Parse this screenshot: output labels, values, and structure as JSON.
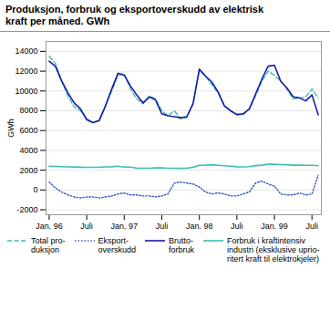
{
  "chart_data": {
    "type": "line",
    "title": "Produksjon, forbruk og eksportoverskudd av elektrisk\nkraft per måned. GWh",
    "ylabel": "GWh",
    "categories": [
      "Jan. 96",
      null,
      null,
      null,
      null,
      null,
      "Juli",
      null,
      null,
      null,
      null,
      null,
      "Jan. 97",
      null,
      null,
      null,
      null,
      null,
      "Juli",
      null,
      null,
      null,
      null,
      null,
      "Jan. 98",
      null,
      null,
      null,
      null,
      null,
      "Juli",
      null,
      null,
      null,
      null,
      null,
      "Jan. 99",
      null,
      null,
      null,
      null,
      null,
      "Juli",
      null
    ],
    "series": [
      {
        "name": "Total pro-\nduksjon",
        "color": "#3dbfb0",
        "line_style": "dashed",
        "values": [
          13500,
          12800,
          11000,
          9500,
          8400,
          8000,
          7200,
          6800,
          7100,
          8500,
          10000,
          11600,
          11700,
          10200,
          9200,
          8700,
          9500,
          9200,
          8000,
          7500,
          8000,
          7200,
          7300,
          8800,
          12100,
          11500,
          10600,
          9800,
          8500,
          8000,
          7700,
          7600,
          8200,
          9500,
          11000,
          12000,
          11600,
          11000,
          10200,
          9200,
          9300,
          9400,
          10200,
          9300
        ]
      },
      {
        "name": "Eksport-\noverskudd",
        "color": "#3355cc",
        "line_style": "dotted",
        "values": [
          800,
          200,
          -200,
          -500,
          -700,
          -800,
          -700,
          -700,
          -800,
          -700,
          -600,
          -400,
          -300,
          -500,
          -500,
          -600,
          -600,
          -700,
          -600,
          -400,
          700,
          800,
          700,
          600,
          300,
          -200,
          -400,
          -300,
          -400,
          -600,
          -600,
          -400,
          -200,
          700,
          900,
          600,
          400,
          -400,
          -500,
          -500,
          -300,
          -500,
          -400,
          1500
        ]
      },
      {
        "name": "Brutto-\nforbruk",
        "color": "#1a1aaa",
        "line_style": "solid",
        "values": [
          13000,
          12500,
          11000,
          9800,
          8800,
          8200,
          7100,
          6800,
          7000,
          8500,
          10200,
          11800,
          11600,
          10500,
          9600,
          8800,
          9400,
          9100,
          7700,
          7500,
          7400,
          7300,
          7400,
          8700,
          12200,
          11500,
          10900,
          9900,
          8500,
          8000,
          7600,
          7700,
          8200,
          9700,
          11200,
          12500,
          12600,
          11000,
          10300,
          9400,
          9300,
          9000,
          9600,
          7600
        ]
      },
      {
        "name": "Forbruk i kraftintensiv\nindustri (eksklusive uprio-\nritert kraft til elektrokjeler)",
        "color": "#3dbfb0",
        "line_style": "solid",
        "values": [
          2400,
          2380,
          2360,
          2340,
          2320,
          2300,
          2290,
          2290,
          2300,
          2330,
          2350,
          2400,
          2320,
          2310,
          2210,
          2200,
          2200,
          2230,
          2240,
          2200,
          2200,
          2190,
          2200,
          2300,
          2500,
          2510,
          2550,
          2500,
          2450,
          2400,
          2350,
          2340,
          2360,
          2460,
          2510,
          2600,
          2600,
          2560,
          2550,
          2510,
          2510,
          2500,
          2490,
          2450
        ]
      }
    ],
    "ylim": [
      -2500,
      15000
    ],
    "yticks": [
      -2000,
      0,
      2000,
      4000,
      6000,
      8000,
      10000,
      12000,
      14000
    ],
    "grid": true,
    "legend": "bottom"
  }
}
